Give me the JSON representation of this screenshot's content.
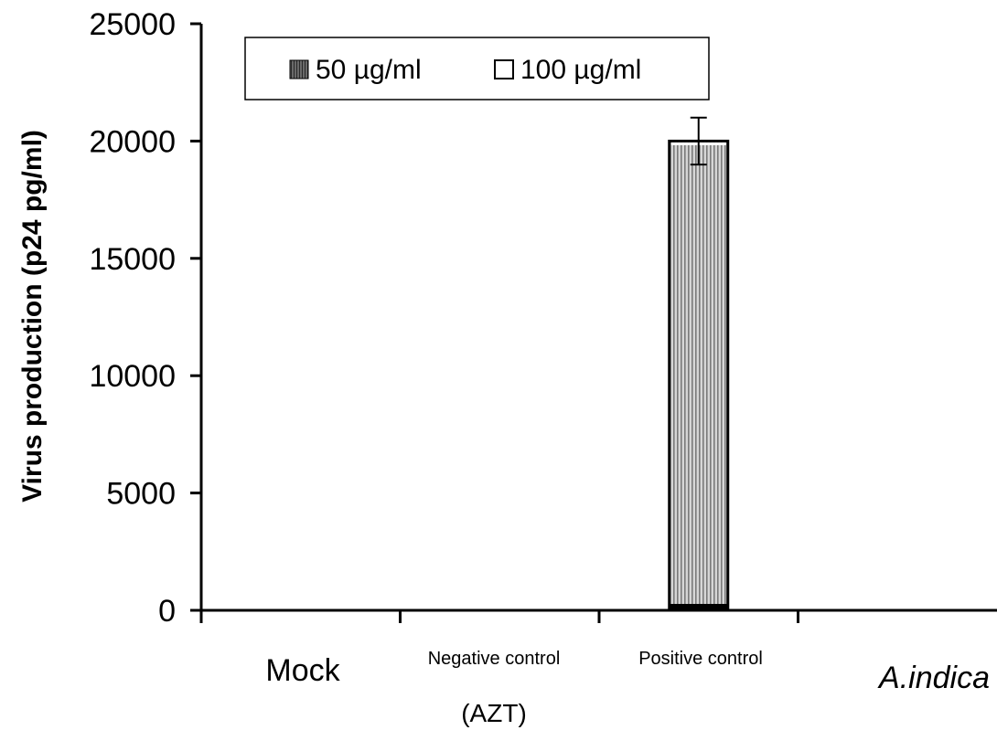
{
  "chart_data": {
    "type": "bar",
    "title": "",
    "xlabel": "",
    "ylabel": "Virus production (p24 pg/ml)",
    "ylim": [
      0,
      25000
    ],
    "yticks": [
      0,
      5000,
      10000,
      15000,
      20000,
      25000
    ],
    "categories": [
      "Mock",
      "Negative control",
      "Positive control",
      "A.indica"
    ],
    "category_sublabels": [
      "",
      "(AZT)",
      "",
      ""
    ],
    "series": [
      {
        "name": "50 µg/ml",
        "fill": "#9a9a9a",
        "pattern": "vertical-stripes",
        "values": [
          0,
          0,
          20000,
          0
        ],
        "errors": [
          0,
          0,
          1000,
          0
        ]
      },
      {
        "name": "100 µg/ml",
        "fill": "#ffffff",
        "values": [
          0,
          0,
          0,
          0
        ],
        "errors": [
          0,
          0,
          0,
          0
        ]
      }
    ],
    "stacked": true,
    "legend": "top-left",
    "grid": false
  }
}
